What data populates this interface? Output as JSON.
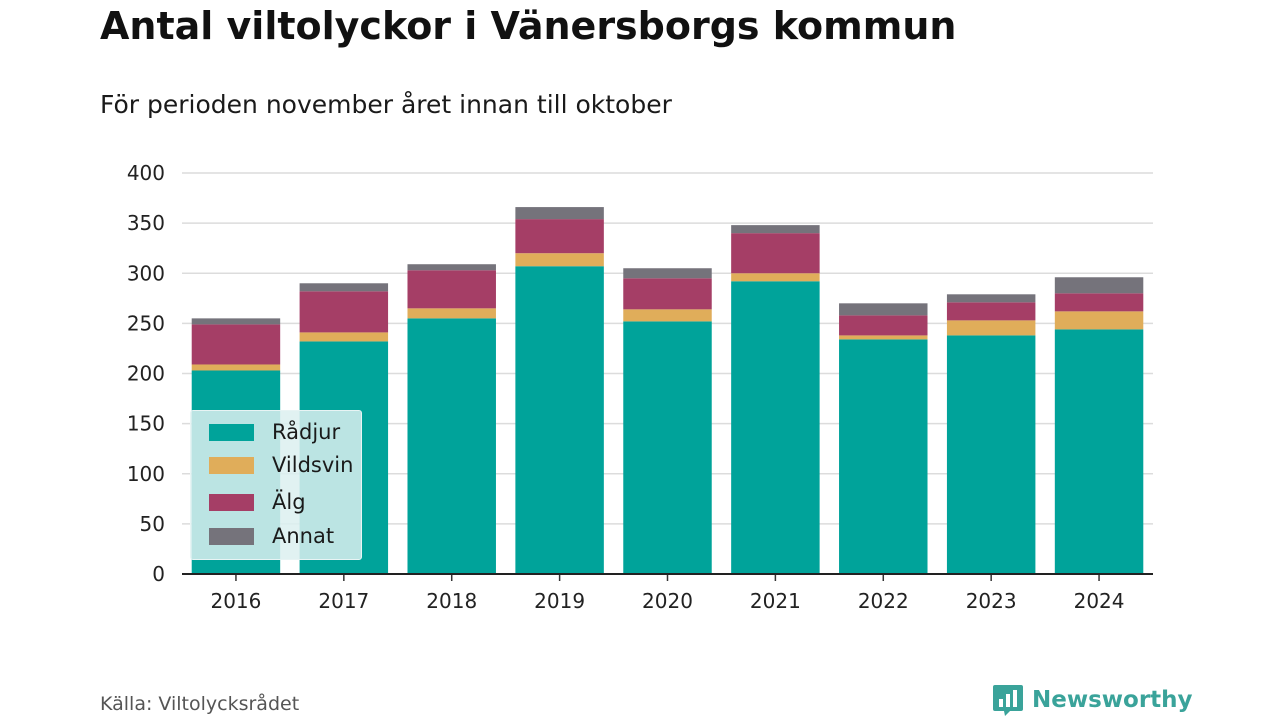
{
  "title": "Antal viltolyckor i Vänersborgs kommun",
  "subtitle": "För perioden november året innan till oktober",
  "source": "Källa: Viltolycksrådet",
  "brand": {
    "name": "Newsworthy",
    "icon": "newsworthy-logo-icon",
    "color": "#3aa39a"
  },
  "chart_data": {
    "type": "bar",
    "stacked": true,
    "categories": [
      "2016",
      "2017",
      "2018",
      "2019",
      "2020",
      "2021",
      "2022",
      "2023",
      "2024"
    ],
    "series": [
      {
        "name": "Rådjur",
        "color": "#00a39a",
        "values": [
          203,
          232,
          255,
          307,
          252,
          292,
          234,
          238,
          244
        ]
      },
      {
        "name": "Vildsvin",
        "color": "#e0ad5a",
        "values": [
          6,
          9,
          10,
          13,
          12,
          8,
          4,
          15,
          18
        ]
      },
      {
        "name": "Älg",
        "color": "#a53e66",
        "values": [
          40,
          41,
          38,
          34,
          31,
          40,
          20,
          18,
          18
        ]
      },
      {
        "name": "Annat",
        "color": "#75737b",
        "values": [
          6,
          8,
          6,
          12,
          10,
          8,
          12,
          8,
          16
        ]
      }
    ],
    "yticks": [
      0,
      50,
      100,
      150,
      200,
      250,
      300,
      350,
      400
    ],
    "ylim": [
      0,
      400
    ],
    "grid": true,
    "legend_position": "bottom-left"
  }
}
